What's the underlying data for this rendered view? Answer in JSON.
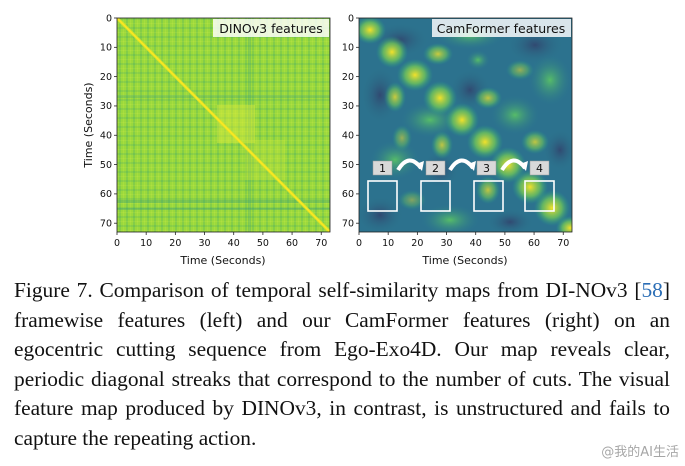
{
  "panels": [
    {
      "title": "DINOv3 features",
      "xlabel": "Time (Seconds)",
      "ylabel": "Time (Seconds)"
    },
    {
      "title": "CamFormer features",
      "xlabel": "Time (Seconds)",
      "cut_labels": [
        "1",
        "2",
        "3",
        "4"
      ]
    }
  ],
  "ticks": [
    "0",
    "10",
    "20",
    "30",
    "40",
    "50",
    "60",
    "70"
  ],
  "caption": {
    "lead": "Figure 7.  Comparison of temporal self-similarity maps from DI-NOv3 [",
    "ref": "58",
    "rest": "] framewise features (left) and our CamFormer features (right) on an egocentric cutting sequence from Ego-Exo4D. Our map reveals clear, periodic diagonal streaks that correspond to the number of cuts. The visual feature map produced by DINOv3, in contrast, is unstructured and fails to capture the repeating action."
  },
  "watermark": "@我的AI生活",
  "colors": {
    "viridis_low": "#440154",
    "viridis_mid": "#21918c",
    "viridis_high": "#fde725",
    "ref_link": "#2a6db5"
  }
}
